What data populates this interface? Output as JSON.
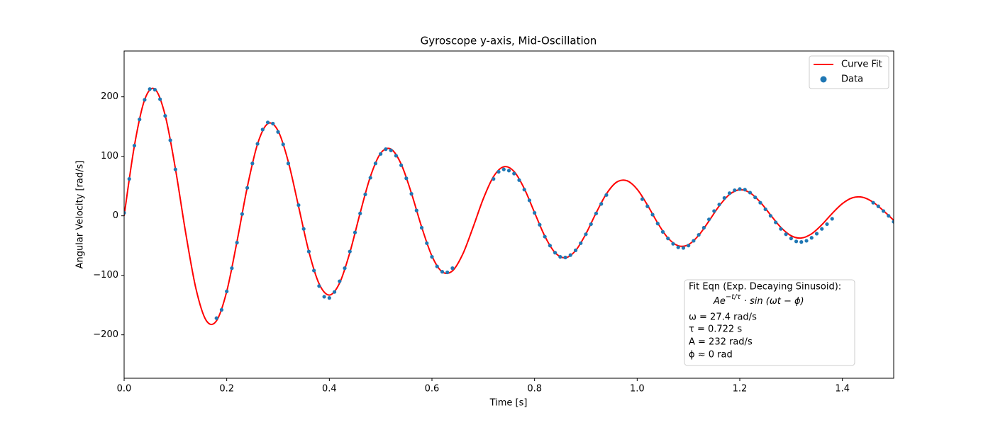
{
  "chart_data": {
    "type": "line",
    "title": "Gyroscope y-axis, Mid-Oscillation",
    "xlabel": "Time [s]",
    "ylabel": "Angular Velocity [rad/s]",
    "xlim": [
      0,
      1.5
    ],
    "ylim": [
      -273,
      277
    ],
    "xticks": [
      {
        "value": 0,
        "label": "0.0"
      },
      0.2,
      0.4,
      0.6,
      0.8,
      {
        "value": 1,
        "label": "1.0"
      },
      1.2,
      1.4
    ],
    "yticks": [
      {
        "value": -200,
        "label": "−200"
      },
      {
        "value": -100,
        "label": "−100"
      },
      0,
      100,
      200
    ],
    "legend": "upper right",
    "series": [
      {
        "name": "Curve Fit",
        "type": "line",
        "color": "#ff0000",
        "x": [
          0,
          0.02,
          0.04,
          0.06,
          0.08,
          0.1,
          0.12,
          0.14,
          0.16,
          0.18,
          0.2,
          0.22,
          0.24,
          0.26,
          0.28,
          0.3,
          0.32,
          0.34,
          0.36,
          0.38,
          0.4,
          0.42,
          0.44,
          0.46,
          0.48,
          0.5,
          0.52,
          0.54,
          0.56,
          0.58,
          0.6,
          0.62,
          0.64,
          0.66,
          0.68,
          0.7,
          0.72,
          0.74,
          0.76,
          0.78,
          0.8,
          0.82,
          0.84,
          0.86,
          0.88,
          0.9,
          0.92,
          0.94,
          0.96,
          0.98,
          1,
          1.02,
          1.04,
          1.06,
          1.08,
          1.1,
          1.12,
          1.14,
          1.16,
          1.18,
          1.2,
          1.22,
          1.24,
          1.26,
          1.28,
          1.3,
          1.32,
          1.34,
          1.36,
          1.38,
          1.4,
          1.42,
          1.44,
          1.46,
          1.48,
          1.5
        ],
        "values": [
          0,
          117.6,
          195.1,
          212.9,
          168.9,
          79.0,
          -28.7,
          -122.5,
          -175.9,
          -176.5,
          -127.0,
          -43.1,
          48.0,
          120.6,
          154.9,
          143.0,
          90.9,
          15.7,
          -59.9,
          -114.2,
          -133.2,
          -113.0,
          -61.6,
          4.6,
          65.9,
          105.2,
          112.2,
          86.9,
          38.0,
          -19.0,
          -67.7,
          -94.2,
          -92.5,
          -64.5,
          -19.6,
          28.5,
          65.9,
          82.4,
          74.5,
          45.7,
          5.4,
          -34.2,
          -61.9,
          -70.5,
          -58.4,
          -30.4,
          4.9,
          36.8,
          56.6,
          59.0,
          44.6,
          18.1,
          -12.1,
          -37.3,
          -50.3,
          -48.4,
          -32.7,
          -8.6,
          16.7,
          35.9,
          43.8,
          38.7,
          22.9,
          1.4,
          -19.4,
          -33.5,
          -37.3,
          -30.2,
          -14.9,
          3.9,
          20.5,
          30.4,
          31.0,
          22.8,
          8.5,
          -7.5
        ]
      },
      {
        "name": "Data",
        "type": "scatter",
        "color": "#1f77b4",
        "x": [
          0,
          0.01,
          0.02,
          0.03,
          0.04,
          0.05,
          0.06,
          0.07,
          0.08,
          0.09,
          0.1,
          0.18,
          0.19,
          0.2,
          0.21,
          0.22,
          0.23,
          0.24,
          0.25,
          0.26,
          0.27,
          0.28,
          0.29,
          0.3,
          0.31,
          0.32,
          0.34,
          0.35,
          0.36,
          0.37,
          0.38,
          0.39,
          0.4,
          0.41,
          0.42,
          0.43,
          0.44,
          0.45,
          0.46,
          0.47,
          0.48,
          0.49,
          0.5,
          0.51,
          0.52,
          0.53,
          0.54,
          0.55,
          0.56,
          0.57,
          0.58,
          0.59,
          0.6,
          0.61,
          0.62,
          0.63,
          0.64,
          0.72,
          0.73,
          0.74,
          0.75,
          0.76,
          0.77,
          0.78,
          0.79,
          0.8,
          0.81,
          0.82,
          0.83,
          0.84,
          0.85,
          0.86,
          0.87,
          0.88,
          0.89,
          0.9,
          0.91,
          0.92,
          0.93,
          0.94,
          1.01,
          1.02,
          1.03,
          1.04,
          1.05,
          1.06,
          1.07,
          1.08,
          1.09,
          1.1,
          1.11,
          1.12,
          1.13,
          1.14,
          1.15,
          1.16,
          1.17,
          1.18,
          1.19,
          1.2,
          1.21,
          1.22,
          1.23,
          1.24,
          1.25,
          1.26,
          1.27,
          1.28,
          1.29,
          1.3,
          1.31,
          1.32,
          1.33,
          1.34,
          1.35,
          1.36,
          1.37,
          1.38,
          1.46,
          1.47,
          1.48,
          1.49,
          1.5
        ],
        "values": [
          5,
          62,
          118,
          162,
          195,
          213,
          212,
          196,
          168,
          127,
          78,
          -172,
          -158,
          -127,
          -88,
          -45,
          3,
          47,
          88,
          121,
          145,
          157,
          155,
          141,
          120,
          88,
          18,
          -22,
          -60,
          -92,
          -118,
          -136,
          -138,
          -128,
          -110,
          -88,
          -60,
          -28,
          4,
          36,
          64,
          88,
          104,
          112,
          110,
          101,
          85,
          63,
          37,
          9,
          -20,
          -46,
          -69,
          -85,
          -94,
          -95,
          -88,
          62,
          74,
          78,
          76,
          71,
          60,
          44,
          26,
          5,
          -15,
          -35,
          -50,
          -62,
          -69,
          -70,
          -66,
          -58,
          -46,
          -31,
          -14,
          4,
          20,
          35,
          28,
          16,
          2,
          -13,
          -27,
          -38,
          -47,
          -53,
          -54,
          -50,
          -42,
          -32,
          -20,
          -6,
          8,
          19,
          30,
          38,
          43,
          45,
          44,
          39,
          31,
          22,
          11,
          0,
          -11,
          -22,
          -31,
          -38,
          -43,
          -44,
          -42,
          -37,
          -30,
          -22,
          -14,
          -5,
          22,
          16,
          8,
          0,
          -10
        ]
      }
    ],
    "annotation": {
      "heading": "Fit Eqn (Exp. Decaying Sinusoid):",
      "equation": {
        "base": "Ae",
        "sup": "−t/τ",
        "rest": " · sin (ωt − ϕ)"
      },
      "params": [
        "ω = 27.4 rad/s",
        "τ = 0.722 s",
        "A = 232 rad/s",
        "ϕ ≈ 0 rad"
      ]
    }
  }
}
